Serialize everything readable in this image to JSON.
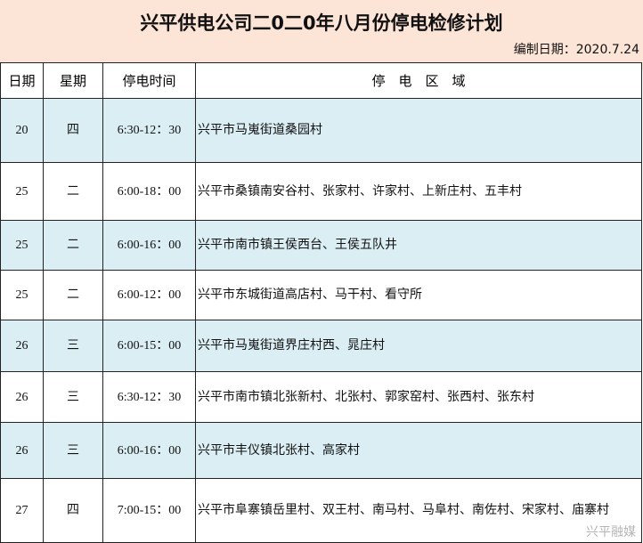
{
  "title": "兴平供电公司二0二0年八月份停电检修计划",
  "compiled_date": "编制日期：2020.7.24",
  "headers": [
    "日期",
    "星期",
    "停电时间",
    "停　电　区　域"
  ],
  "rows": [
    {
      "day": "20",
      "weekday": "四",
      "time": "6:30-12：30",
      "area": "兴平市马嵬街道桑园村"
    },
    {
      "day": "25",
      "weekday": "二",
      "time": "6:00-18：00",
      "area": "兴平市桑镇南安谷村、张家村、许家村、上新庄村、五丰村"
    },
    {
      "day": "25",
      "weekday": "二",
      "time": "6:00-16：00",
      "area": "兴平市南市镇王侯西台、王侯五队井"
    },
    {
      "day": "25",
      "weekday": "二",
      "time": "6:00-12：00",
      "area": "兴平市东城街道高店村、马干村、看守所"
    },
    {
      "day": "26",
      "weekday": "三",
      "time": "6:00-15：00",
      "area": "兴平市马嵬街道界庄村西、晁庄村"
    },
    {
      "day": "26",
      "weekday": "三",
      "time": "6:30-12：30",
      "area": "兴平市南市镇北张新村、北张村、郭家窑村、张西村、张东村"
    },
    {
      "day": "26",
      "weekday": "三",
      "time": "6:00-16：00",
      "area": "兴平市丰仪镇北张村、高家村"
    },
    {
      "day": "27",
      "weekday": "四",
      "time": "7:00-15：00",
      "area": "兴平市阜寨镇岳里村、双王村、南马村、马阜村、南佐村、宋家村、庙寨村"
    }
  ],
  "watermark": "兴平融媒",
  "colors": {
    "header_bg": "#fce4d6",
    "shaded_row": "#daeef3"
  }
}
